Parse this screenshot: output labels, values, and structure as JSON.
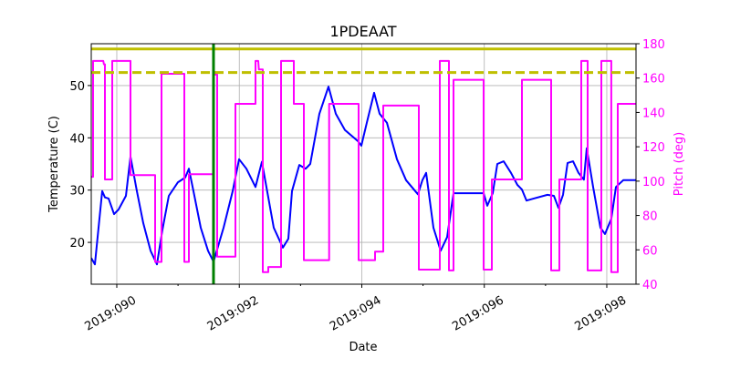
{
  "chart_data": {
    "type": "line",
    "title": "1PDEAAT",
    "xlabel": "Date",
    "ylabel": "Temperature (C)",
    "y2label": "Pitch (deg)",
    "xlim": [
      89.583,
      98.477
    ],
    "ylim": [
      12,
      58
    ],
    "y2lim": [
      40,
      180
    ],
    "grid": true,
    "x_ticks": [
      90,
      92,
      94,
      96,
      98
    ],
    "x_tick_labels": [
      "2019:090",
      "2019:092",
      "2019:094",
      "2019:096",
      "2019:098"
    ],
    "x_minor_ticks": [
      91,
      93,
      95,
      97
    ],
    "y_ticks": [
      20,
      30,
      40,
      50
    ],
    "y2_ticks": [
      40,
      60,
      80,
      100,
      120,
      140,
      160,
      180
    ],
    "colors": {
      "temperature": "#0000ff",
      "pitch": "#ff00ff",
      "limit": "#bfbf00",
      "marker": "#008000"
    },
    "hlines": [
      {
        "y": 57.0,
        "style": "solid"
      },
      {
        "y": 52.5,
        "style": "dashed"
      }
    ],
    "vline": {
      "x": 91.579
    },
    "series": [
      {
        "axis": "left",
        "color": "#0000ff",
        "points": [
          [
            89.583,
            17.0
          ],
          [
            89.643,
            15.8
          ],
          [
            89.762,
            29.8
          ],
          [
            89.806,
            28.6
          ],
          [
            89.866,
            28.4
          ],
          [
            89.955,
            25.4
          ],
          [
            90.03,
            26.3
          ],
          [
            90.149,
            28.9
          ],
          [
            90.223,
            36.4
          ],
          [
            90.328,
            29.8
          ],
          [
            90.432,
            23.7
          ],
          [
            90.551,
            18.4
          ],
          [
            90.656,
            15.8
          ],
          [
            90.745,
            22.4
          ],
          [
            90.849,
            28.9
          ],
          [
            90.998,
            31.5
          ],
          [
            91.117,
            32.4
          ],
          [
            91.177,
            34.1
          ],
          [
            91.251,
            29.8
          ],
          [
            91.37,
            22.8
          ],
          [
            91.49,
            18.4
          ],
          [
            91.579,
            16.3
          ],
          [
            91.743,
            22.8
          ],
          [
            91.892,
            29.8
          ],
          [
            91.996,
            35.9
          ],
          [
            92.115,
            34.1
          ],
          [
            92.264,
            30.6
          ],
          [
            92.369,
            35.4
          ],
          [
            92.562,
            22.8
          ],
          [
            92.712,
            19.0
          ],
          [
            92.801,
            20.7
          ],
          [
            92.861,
            29.8
          ],
          [
            92.98,
            34.8
          ],
          [
            93.084,
            34.1
          ],
          [
            93.159,
            35.0
          ],
          [
            93.308,
            44.6
          ],
          [
            93.457,
            49.8
          ],
          [
            93.576,
            44.6
          ],
          [
            93.725,
            41.5
          ],
          [
            93.933,
            39.4
          ],
          [
            93.993,
            38.5
          ],
          [
            94.082,
            42.9
          ],
          [
            94.201,
            48.6
          ],
          [
            94.29,
            44.6
          ],
          [
            94.41,
            42.9
          ],
          [
            94.574,
            35.9
          ],
          [
            94.723,
            31.9
          ],
          [
            94.916,
            29.2
          ],
          [
            94.99,
            31.9
          ],
          [
            95.05,
            33.3
          ],
          [
            95.169,
            22.8
          ],
          [
            95.288,
            18.4
          ],
          [
            95.393,
            21.0
          ],
          [
            95.497,
            29.4
          ],
          [
            95.989,
            29.4
          ],
          [
            96.048,
            27.0
          ],
          [
            96.138,
            29.4
          ],
          [
            96.212,
            35.0
          ],
          [
            96.317,
            35.5
          ],
          [
            96.436,
            33.3
          ],
          [
            96.54,
            31.0
          ],
          [
            96.615,
            30.1
          ],
          [
            96.689,
            28.0
          ],
          [
            96.808,
            28.4
          ],
          [
            97.031,
            29.1
          ],
          [
            97.136,
            28.9
          ],
          [
            97.21,
            26.6
          ],
          [
            97.285,
            29.1
          ],
          [
            97.359,
            35.2
          ],
          [
            97.449,
            35.5
          ],
          [
            97.538,
            33.3
          ],
          [
            97.627,
            32.0
          ],
          [
            97.672,
            38.0
          ],
          [
            97.777,
            30.6
          ],
          [
            97.896,
            22.8
          ],
          [
            97.97,
            21.6
          ],
          [
            98.074,
            24.5
          ],
          [
            98.149,
            30.6
          ],
          [
            98.268,
            31.9
          ],
          [
            98.477,
            31.9
          ]
        ]
      },
      {
        "axis": "right",
        "color": "#ff00ff",
        "points": [
          [
            89.583,
            102.5
          ],
          [
            89.613,
            102.5
          ],
          [
            89.613,
            170
          ],
          [
            89.78,
            170
          ],
          [
            89.79,
            168
          ],
          [
            89.806,
            168
          ],
          [
            89.806,
            101
          ],
          [
            89.926,
            101
          ],
          [
            89.926,
            170
          ],
          [
            90.223,
            170
          ],
          [
            90.223,
            103.5
          ],
          [
            90.626,
            103.5
          ],
          [
            90.626,
            53
          ],
          [
            90.73,
            53
          ],
          [
            90.73,
            162.5
          ],
          [
            91.102,
            162.5
          ],
          [
            91.102,
            53
          ],
          [
            91.177,
            53
          ],
          [
            91.177,
            104
          ],
          [
            91.579,
            104
          ],
          [
            91.579,
            162
          ],
          [
            91.639,
            162
          ],
          [
            91.639,
            56
          ],
          [
            91.937,
            56
          ],
          [
            91.937,
            145
          ],
          [
            92.264,
            145
          ],
          [
            92.264,
            170
          ],
          [
            92.31,
            170
          ],
          [
            92.32,
            165
          ],
          [
            92.384,
            165
          ],
          [
            92.384,
            47
          ],
          [
            92.473,
            47
          ],
          [
            92.473,
            50
          ],
          [
            92.682,
            50
          ],
          [
            92.682,
            170
          ],
          [
            92.89,
            170
          ],
          [
            92.89,
            145
          ],
          [
            93.054,
            145
          ],
          [
            93.054,
            54
          ],
          [
            93.467,
            54
          ],
          [
            93.467,
            145
          ],
          [
            93.948,
            145
          ],
          [
            93.948,
            54
          ],
          [
            94.216,
            54
          ],
          [
            94.216,
            59
          ],
          [
            94.35,
            59
          ],
          [
            94.35,
            144
          ],
          [
            94.931,
            144
          ],
          [
            94.931,
            48.5
          ],
          [
            95.274,
            48.5
          ],
          [
            95.274,
            170
          ],
          [
            95.423,
            170
          ],
          [
            95.423,
            48
          ],
          [
            95.497,
            48
          ],
          [
            95.497,
            159
          ],
          [
            95.989,
            159
          ],
          [
            95.989,
            48.5
          ],
          [
            96.123,
            48.5
          ],
          [
            96.123,
            101
          ],
          [
            96.615,
            101
          ],
          [
            96.615,
            159
          ],
          [
            97.091,
            159
          ],
          [
            97.091,
            48
          ],
          [
            97.225,
            48
          ],
          [
            97.225,
            101
          ],
          [
            97.583,
            101
          ],
          [
            97.583,
            170
          ],
          [
            97.687,
            170
          ],
          [
            97.687,
            48
          ],
          [
            97.911,
            48
          ],
          [
            97.911,
            170
          ],
          [
            98.074,
            170
          ],
          [
            98.074,
            47
          ],
          [
            98.179,
            47
          ],
          [
            98.179,
            145
          ],
          [
            98.477,
            145
          ]
        ]
      }
    ]
  }
}
